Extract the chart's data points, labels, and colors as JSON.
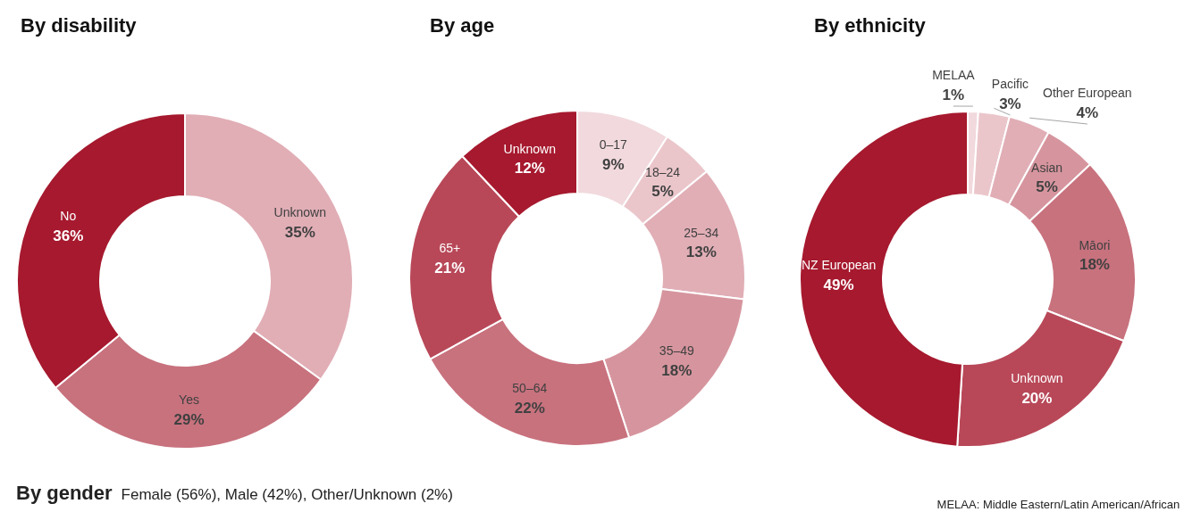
{
  "chart_data": [
    {
      "type": "donut",
      "title": "By disability",
      "categories": [
        "Unknown",
        "Yes",
        "No"
      ],
      "values": [
        35,
        29,
        36
      ],
      "value_labels": [
        "35%",
        "29%",
        "36%"
      ],
      "colors": [
        "#e1aeb6",
        "#c8727e",
        "#a6192e"
      ]
    },
    {
      "type": "donut",
      "title": "By age",
      "categories": [
        "0–17",
        "18–24",
        "25–34",
        "35–49",
        "50–64",
        "65+",
        "Unknown"
      ],
      "values": [
        9,
        5,
        13,
        18,
        22,
        21,
        12
      ],
      "value_labels": [
        "9%",
        "5%",
        "13%",
        "18%",
        "22%",
        "21%",
        "12%"
      ],
      "colors": [
        "#f1d9dd",
        "#eac6cb",
        "#e1aeb6",
        "#d6959e",
        "#c8727e",
        "#b84858",
        "#a6192e"
      ]
    },
    {
      "type": "donut",
      "title": "By ethnicity",
      "categories": [
        "MELAA",
        "Pacific",
        "Other European",
        "Asian",
        "Māori",
        "Unknown",
        "NZ European"
      ],
      "values": [
        1,
        3,
        4,
        5,
        18,
        20,
        49
      ],
      "value_labels": [
        "1%",
        "3%",
        "4%",
        "5%",
        "18%",
        "20%",
        "49%"
      ],
      "colors": [
        "#f1d9dd",
        "#eac6cb",
        "#e1aeb6",
        "#d6959e",
        "#c8727e",
        "#b84858",
        "#a6192e"
      ],
      "annotations": [
        "MELAA: Middle Eastern/Latin American/African"
      ]
    },
    {
      "type": "other",
      "title": "By gender",
      "annotations": [
        "Female (56%), Male (42%), Other/Unknown (2%)"
      ]
    }
  ]
}
